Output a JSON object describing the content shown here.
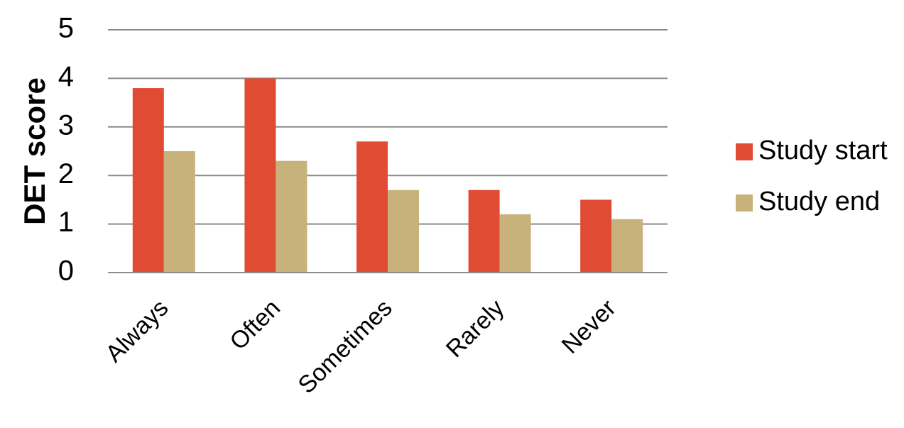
{
  "chart_data": {
    "type": "bar",
    "categories": [
      "Always",
      "Often",
      "Sometimes",
      "Rarely",
      "Never"
    ],
    "series": [
      {
        "name": "Study start",
        "color": "#e04b33",
        "values": [
          3.8,
          4.0,
          2.7,
          1.7,
          1.5
        ]
      },
      {
        "name": "Study end",
        "color": "#c8b27c",
        "values": [
          2.5,
          2.3,
          1.7,
          1.2,
          1.1
        ]
      }
    ],
    "title": "",
    "xlabel": "",
    "ylabel": "DET score",
    "ylim": [
      0,
      5
    ],
    "yticks": [
      "0",
      "1",
      "2",
      "3",
      "4",
      "5"
    ],
    "grid": true,
    "legend_position": "right"
  }
}
